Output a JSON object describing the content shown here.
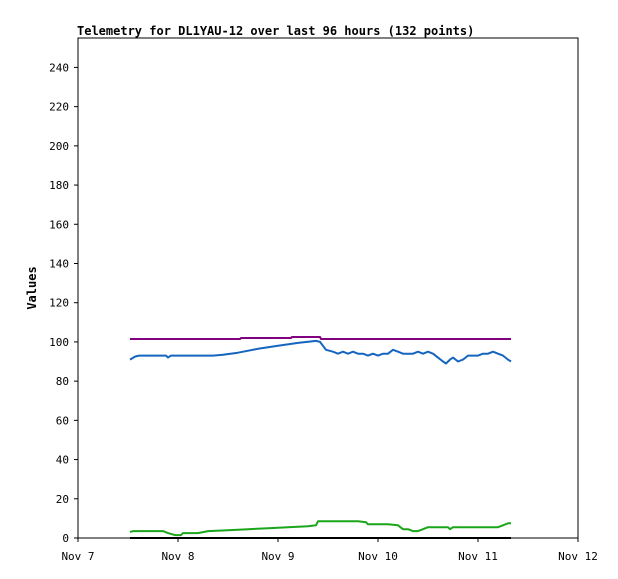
{
  "chart_data": {
    "type": "line",
    "title": "Telemetry for DL1YAU-12 over last 96 hours (132 points)",
    "xlabel": "",
    "ylabel": "Values",
    "x_ticks": [
      "Nov 7",
      "Nov 8",
      "Nov 9",
      "Nov 10",
      "Nov 11",
      "Nov 12"
    ],
    "xlim": [
      0,
      5
    ],
    "ylim": [
      0,
      255
    ],
    "y_ticks": [
      0,
      20,
      40,
      60,
      80,
      100,
      120,
      140,
      160,
      180,
      200,
      220,
      240
    ],
    "grid": false,
    "series": [
      {
        "color": "#800080",
        "x": [
          0.52,
          1.62,
          1.63,
          2.13,
          2.14,
          2.42,
          2.43,
          4.33
        ],
        "values": [
          101.5,
          101.5,
          102,
          102,
          102.5,
          102.5,
          101.5,
          101.5
        ]
      },
      {
        "color": "#1565c0",
        "x": [
          0.52,
          0.57,
          0.61,
          0.88,
          0.9,
          0.93,
          1.35,
          1.45,
          1.6,
          1.8,
          2.0,
          2.2,
          2.38,
          2.42,
          2.48,
          2.55,
          2.6,
          2.65,
          2.7,
          2.75,
          2.8,
          2.85,
          2.9,
          2.95,
          3.0,
          3.05,
          3.1,
          3.15,
          3.2,
          3.25,
          3.3,
          3.35,
          3.4,
          3.45,
          3.5,
          3.55,
          3.6,
          3.65,
          3.68,
          3.72,
          3.75,
          3.8,
          3.85,
          3.9,
          3.95,
          4.0,
          4.05,
          4.1,
          4.15,
          4.2,
          4.25,
          4.3,
          4.33
        ],
        "values": [
          91,
          92.5,
          93,
          93,
          92,
          93,
          93,
          93.5,
          94.5,
          96.5,
          98,
          99.5,
          100.5,
          100,
          96,
          95,
          94,
          95,
          94,
          95,
          94,
          94,
          93,
          94,
          93,
          94,
          94,
          96,
          95,
          94,
          94,
          94,
          95,
          94,
          95,
          94,
          92,
          90,
          89,
          91,
          92,
          90,
          91,
          93,
          93,
          93,
          94,
          94,
          95,
          94,
          93,
          91,
          90
        ]
      },
      {
        "color": "#1aa51a",
        "x": [
          0.52,
          0.55,
          0.6,
          0.85,
          0.9,
          0.97,
          1.03,
          1.05,
          1.2,
          1.25,
          1.3,
          1.5,
          1.7,
          1.9,
          2.1,
          2.3,
          2.38,
          2.4,
          2.5,
          2.6,
          2.8,
          2.88,
          2.9,
          3.0,
          3.1,
          3.2,
          3.25,
          3.3,
          3.35,
          3.4,
          3.45,
          3.5,
          3.55,
          3.6,
          3.7,
          3.72,
          3.75,
          3.8,
          3.9,
          4.0,
          4.1,
          4.2,
          4.25,
          4.3,
          4.33
        ],
        "values": [
          3,
          3.5,
          3.5,
          3.5,
          2.5,
          1.5,
          1.5,
          2.5,
          2.5,
          3,
          3.5,
          4,
          4.5,
          5,
          5.5,
          6,
          6.5,
          8.5,
          8.5,
          8.5,
          8.5,
          8,
          7,
          7,
          7,
          6.5,
          4.5,
          4.5,
          3.5,
          3.5,
          4.5,
          5.5,
          5.5,
          5.5,
          5.5,
          4.5,
          5.5,
          5.5,
          5.5,
          5.5,
          5.5,
          5.5,
          6.5,
          7.5,
          7.5
        ]
      },
      {
        "color": "#000000",
        "x": [
          0.52,
          4.33
        ],
        "values": [
          0,
          0
        ]
      }
    ]
  }
}
